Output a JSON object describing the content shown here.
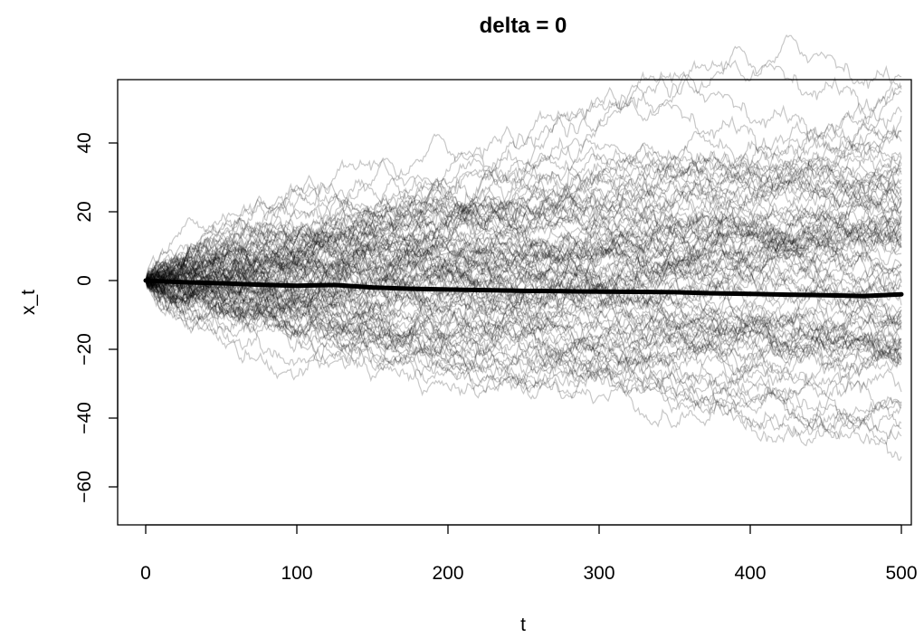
{
  "chart_data": {
    "type": "line",
    "title": "delta = 0",
    "xlabel": "t",
    "ylabel": "x_t",
    "xlim": [
      0,
      500
    ],
    "ylim": [
      -72,
      57
    ],
    "x_ticks": [
      0,
      100,
      200,
      300,
      400,
      500
    ],
    "x_tick_labels": [
      "0",
      "100",
      "200",
      "300",
      "400",
      "500"
    ],
    "y_ticks": [
      -60,
      -40,
      -20,
      0,
      20,
      40
    ],
    "y_tick_labels": [
      "−60",
      "−40",
      "−20",
      "0",
      "20",
      "40"
    ],
    "grid": false,
    "legend": "none",
    "series_style": {
      "paths_color": "#000000",
      "paths_opacity": 0.22,
      "mean_color": "#000000"
    },
    "series": [
      {
        "name": "",
        "x": [
          0,
          25,
          50,
          75,
          100,
          125,
          150,
          175,
          200,
          225,
          250,
          275,
          300,
          325,
          350,
          375,
          400,
          425,
          450,
          475,
          500
        ],
        "values": [
          0,
          -0.5,
          -0.8,
          -1.2,
          -1.5,
          -1.3,
          -2.0,
          -2.4,
          -2.6,
          -2.8,
          -3.0,
          -3.1,
          -3.2,
          -3.3,
          -3.4,
          -3.7,
          -3.9,
          -4.1,
          -4.3,
          -4.5,
          -4.0
        ]
      }
    ]
  }
}
